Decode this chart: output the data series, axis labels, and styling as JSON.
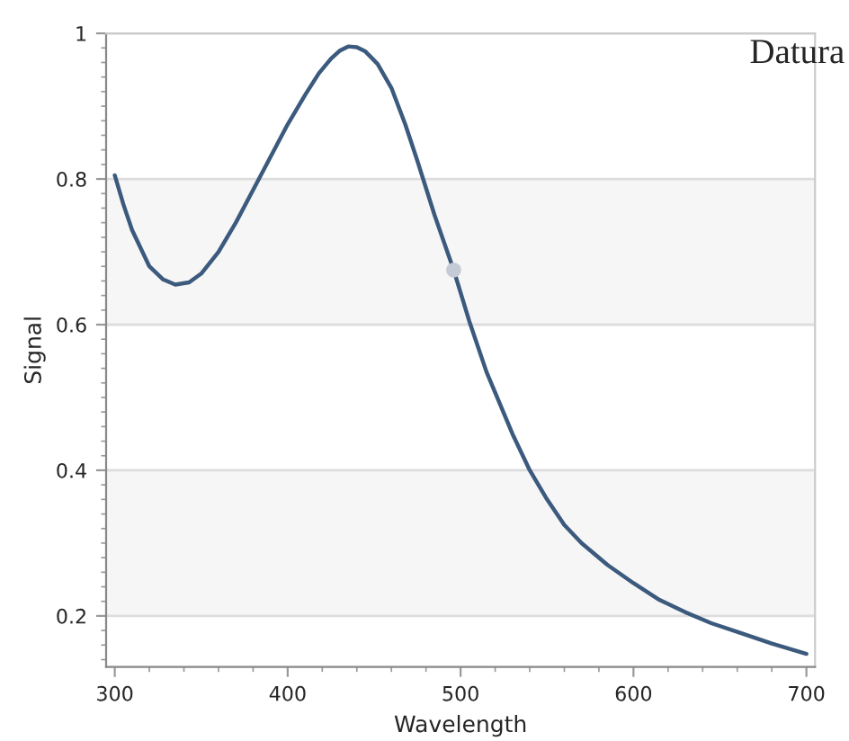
{
  "chart_data": {
    "type": "line",
    "xlabel": "Wavelength",
    "ylabel": "Signal",
    "annotations": [
      "Datura"
    ],
    "xlim": [
      295,
      705
    ],
    "ylim": [
      0.13,
      1.0
    ],
    "xticks": [
      300,
      400,
      500,
      600,
      700
    ],
    "yticks": [
      0.2,
      0.4,
      0.6,
      0.8,
      1
    ],
    "grid": "y",
    "bands": [
      {
        "axis": "y",
        "from": 0.2,
        "to": 0.4,
        "color": "#f6f6f6"
      },
      {
        "axis": "y",
        "from": 0.6,
        "to": 0.8,
        "color": "#f6f6f6"
      }
    ],
    "series": [
      {
        "color": "#3b5a7d",
        "marker": "none",
        "x": [
          300,
          305,
          310,
          320,
          328,
          335,
          343,
          350,
          360,
          370,
          380,
          390,
          400,
          410,
          418,
          425,
          430,
          435,
          440,
          445,
          452,
          460,
          468,
          475,
          485,
          496,
          505,
          515,
          530,
          540,
          550,
          560,
          570,
          585,
          600,
          615,
          630,
          645,
          660,
          680,
          700
        ],
        "values": [
          0.805,
          0.765,
          0.73,
          0.68,
          0.662,
          0.655,
          0.658,
          0.67,
          0.7,
          0.74,
          0.785,
          0.83,
          0.875,
          0.915,
          0.945,
          0.965,
          0.976,
          0.982,
          0.981,
          0.975,
          0.958,
          0.925,
          0.875,
          0.825,
          0.75,
          0.675,
          0.605,
          0.535,
          0.45,
          0.4,
          0.36,
          0.325,
          0.3,
          0.27,
          0.245,
          0.222,
          0.205,
          0.19,
          0.178,
          0.162,
          0.148
        ]
      },
      {
        "type": "scatter",
        "color": "#c5cbd6",
        "marker": "circle",
        "x": [
          496
        ],
        "values": [
          0.675
        ]
      }
    ]
  }
}
